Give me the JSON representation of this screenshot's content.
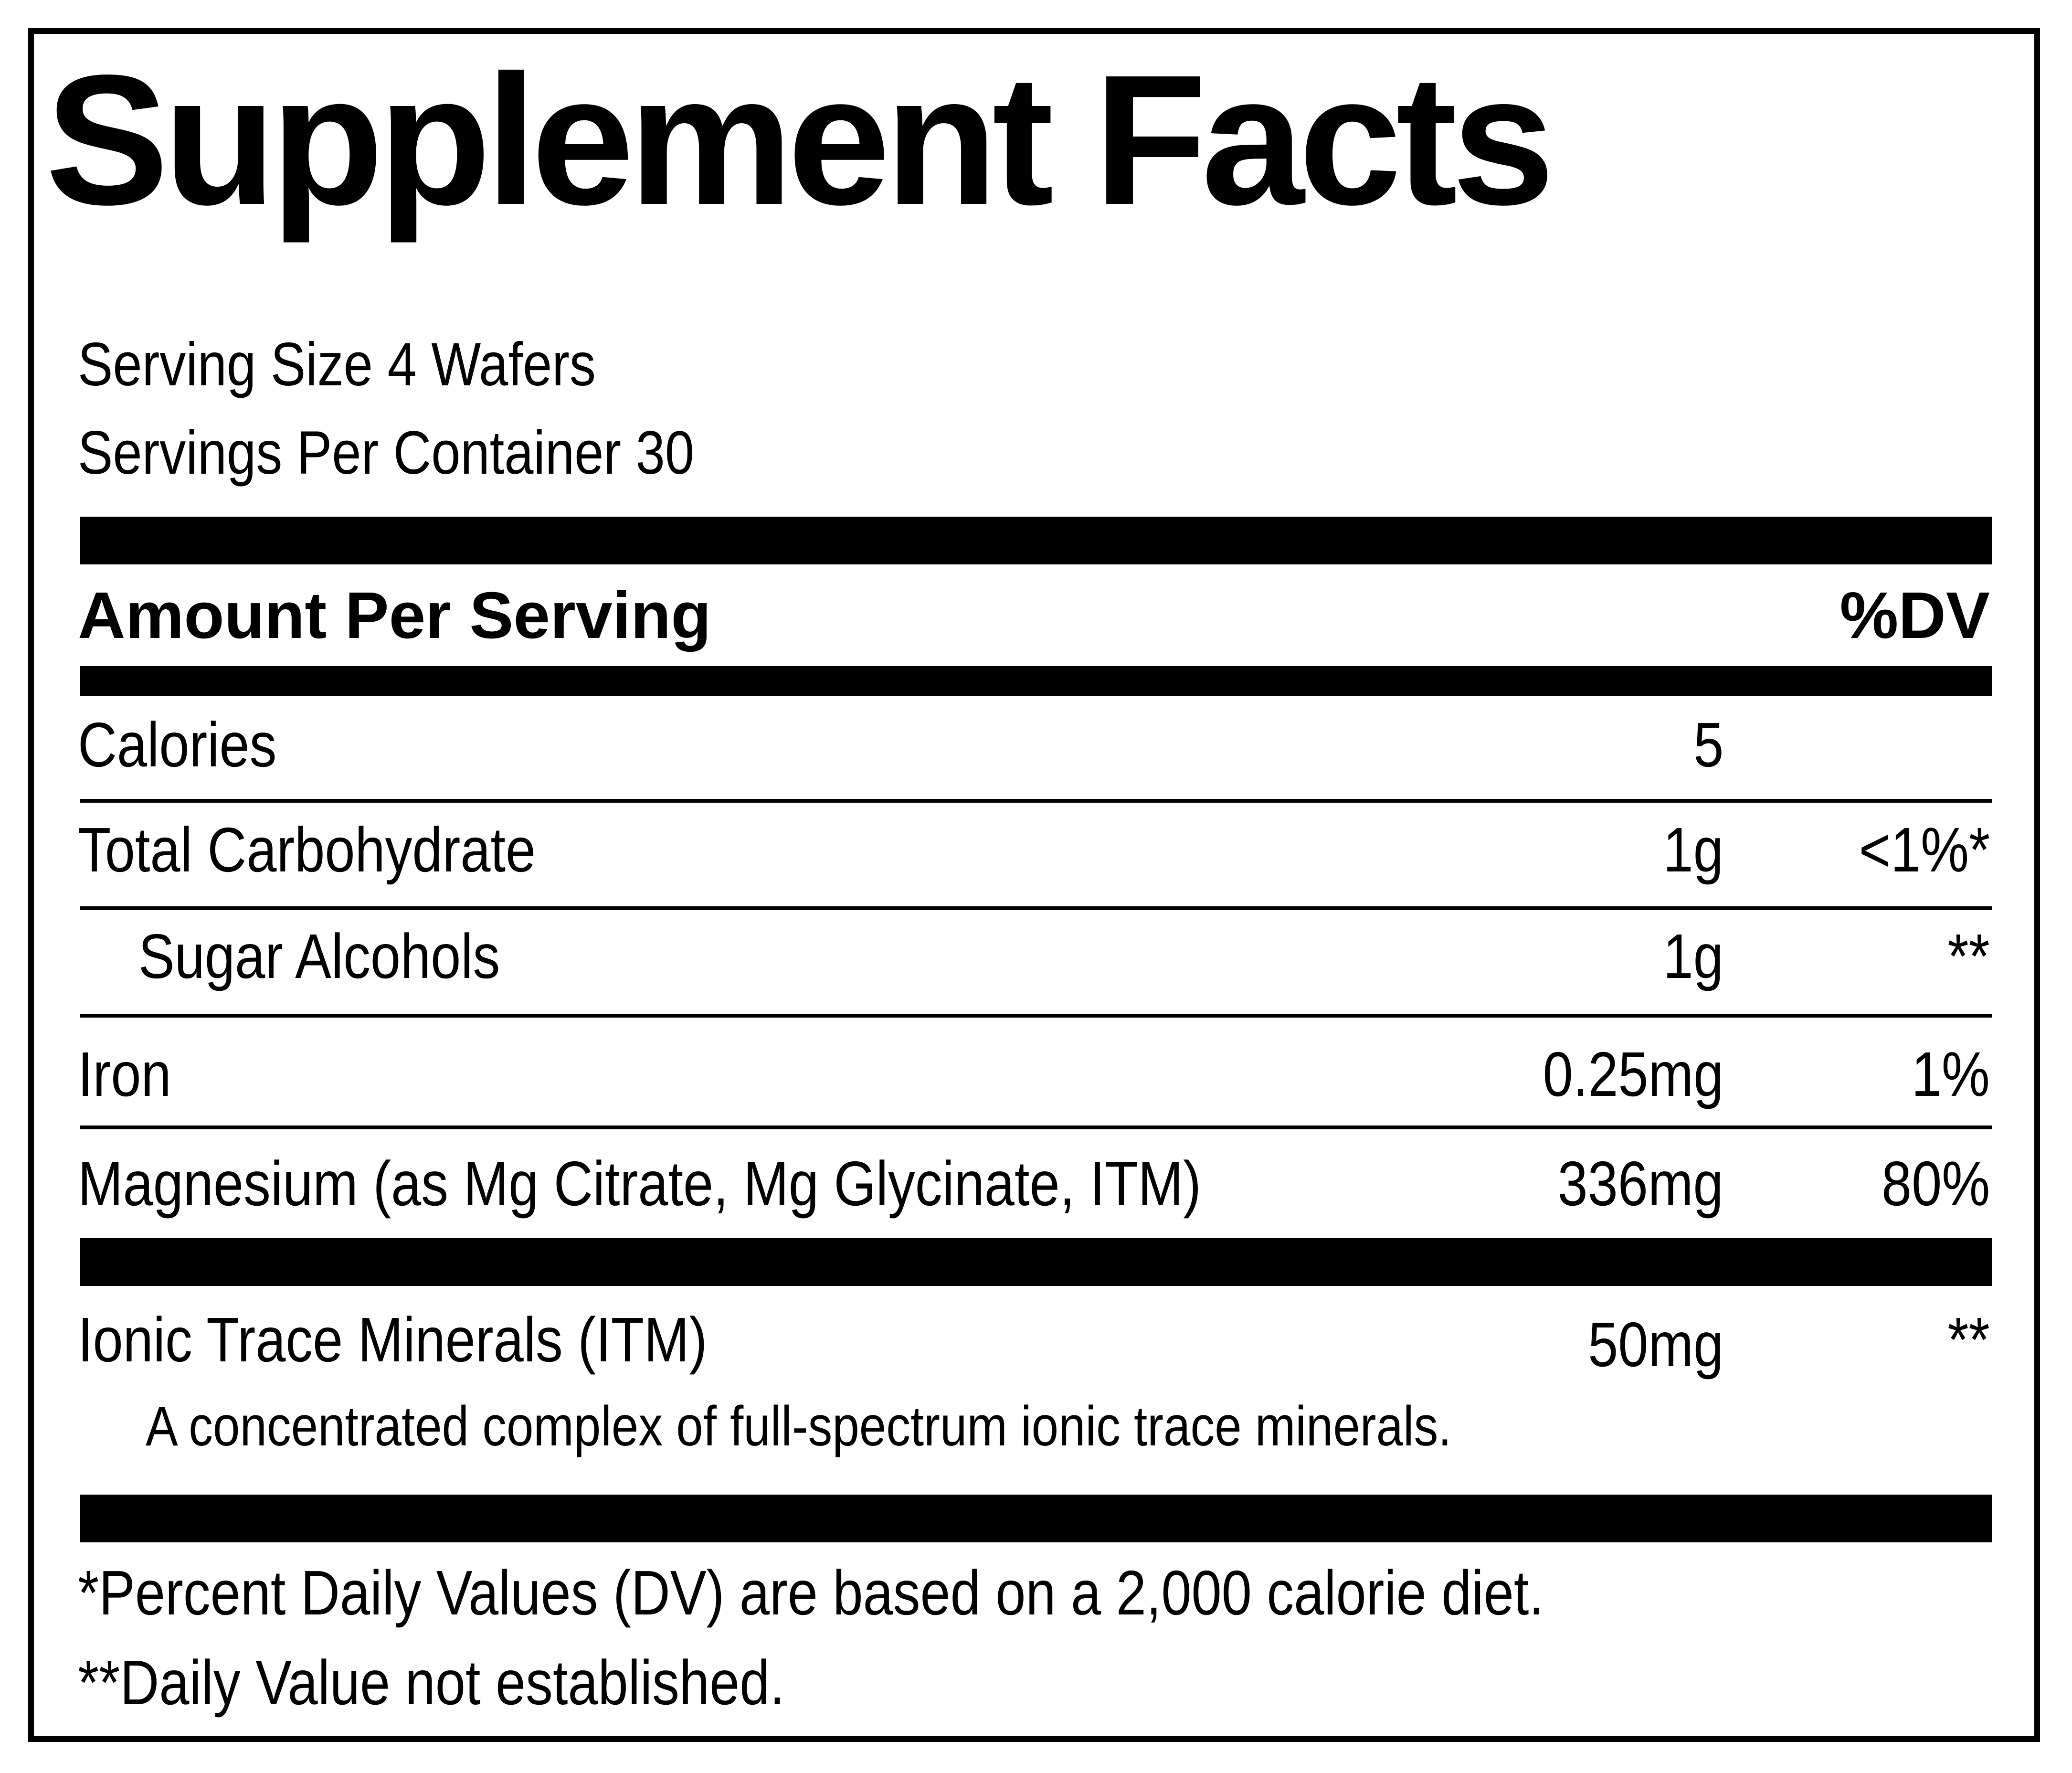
{
  "title": "Supplement Facts",
  "serving_size": "Serving Size 4 Wafers",
  "servings_per_container": "Servings Per Container 30",
  "header": {
    "amount_label": "Amount Per Serving",
    "dv_label": "%DV"
  },
  "rows": [
    {
      "label": "Calories",
      "amount": "5",
      "dv": ""
    },
    {
      "label": "Total Carbohydrate",
      "amount": "1g",
      "dv": "<1%*"
    },
    {
      "label": "Sugar Alcohols",
      "amount": "1g",
      "dv": "**"
    },
    {
      "label": "Iron",
      "amount": "0.25mg",
      "dv": "1%"
    },
    {
      "label": "Magnesium (as Mg Citrate, Mg Glycinate, ITM)",
      "amount": "336mg",
      "dv": "80%"
    }
  ],
  "blend": {
    "label": "Ionic Trace Minerals (ITM)",
    "amount": "50mg",
    "dv": "**",
    "description": "A concentrated complex of full-spectrum ionic trace minerals."
  },
  "footnotes": [
    "*Percent Daily Values (DV) are based on a 2,000 calorie diet.",
    "**Daily Value not established."
  ]
}
